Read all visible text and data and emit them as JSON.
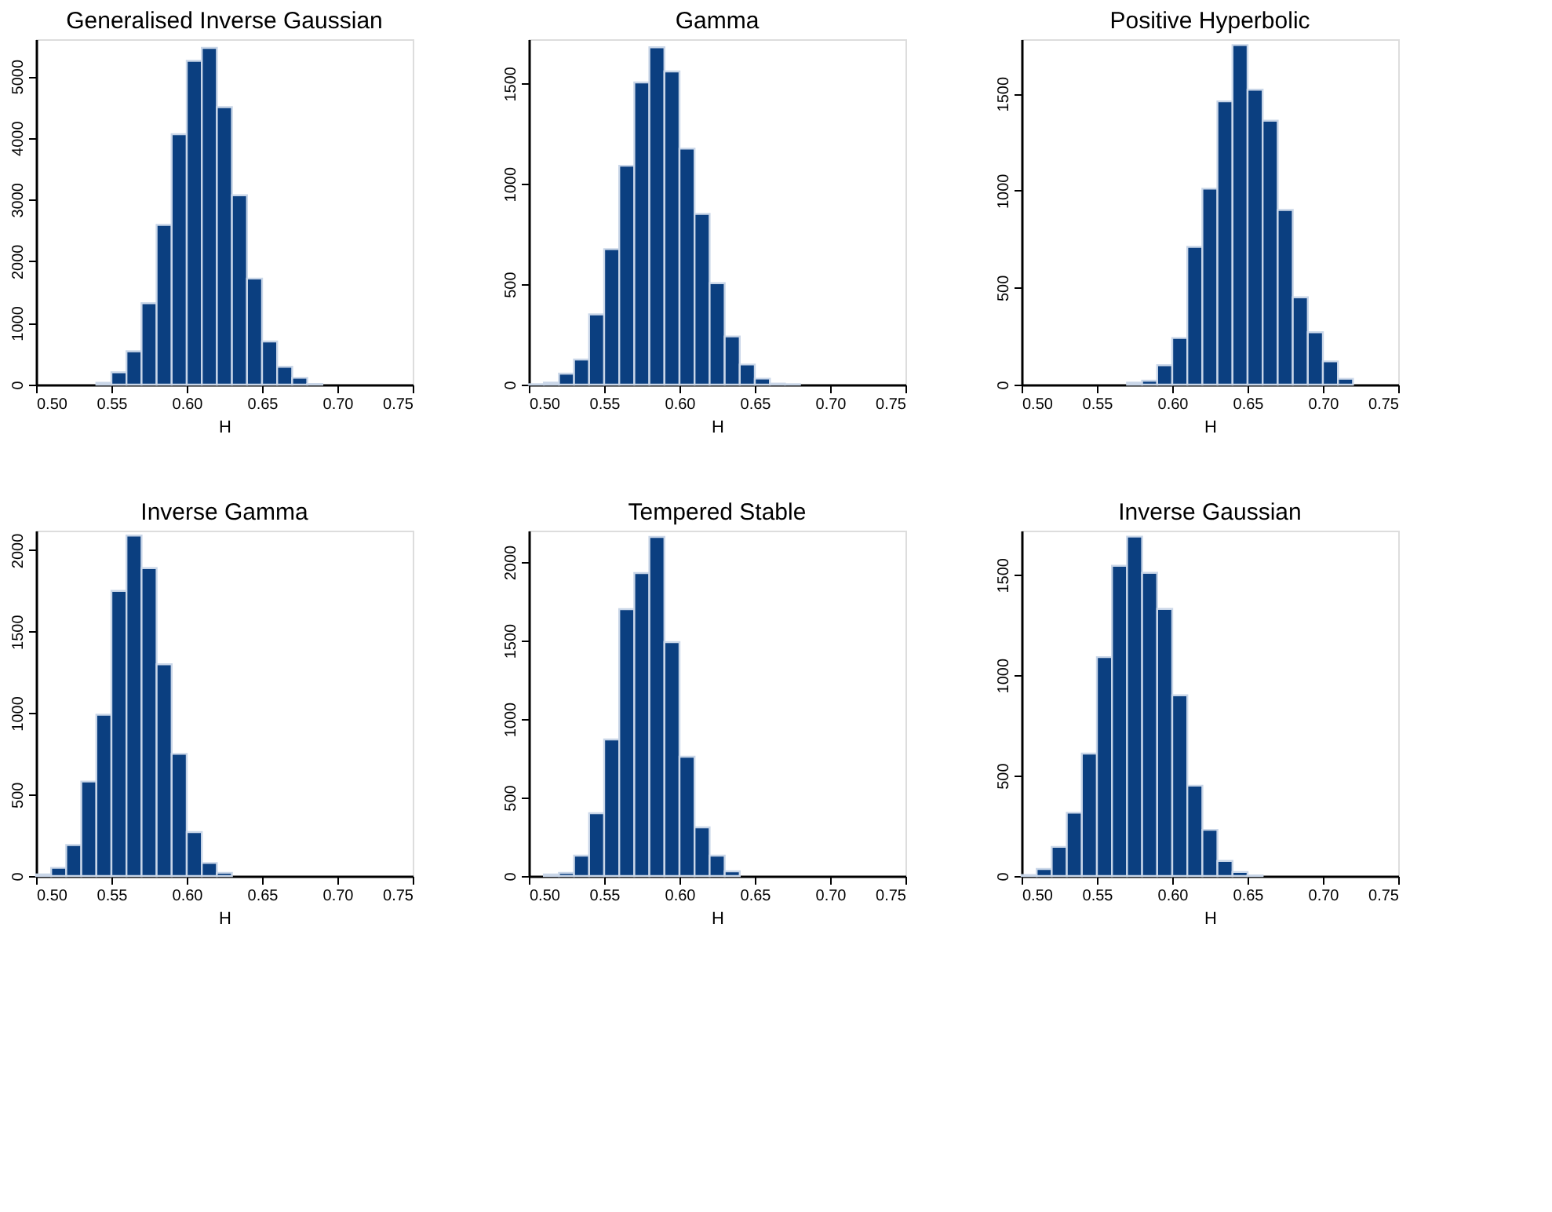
{
  "chart_data": [
    {
      "type": "histogram",
      "title": "Generalised Inverse Gaussian",
      "xlabel": "H",
      "color": "#0b3f80",
      "grid": false,
      "bins": [
        0.5,
        0.51,
        0.52,
        0.53,
        0.54,
        0.55,
        0.56,
        0.57,
        0.58,
        0.59,
        0.6,
        0.61,
        0.62,
        0.63,
        0.64,
        0.65,
        0.66,
        0.67,
        0.68,
        0.69,
        0.7,
        0.71,
        0.72,
        0.73,
        0.74,
        0.75
      ],
      "values": [
        0,
        0,
        0,
        0,
        30,
        200,
        540,
        1320,
        2590,
        4060,
        5250,
        5460,
        4500,
        3070,
        1720,
        700,
        290,
        110,
        10,
        0,
        0,
        0,
        0,
        0,
        0
      ],
      "xlim": [
        0.5,
        0.75
      ],
      "xticks": [
        {
          "value": 0.5,
          "label": "0.50"
        },
        {
          "value": 0.55,
          "label": "0.55"
        },
        {
          "value": 0.6,
          "label": "0.60"
        },
        {
          "value": 0.65,
          "label": "0.65"
        },
        {
          "value": 0.7,
          "label": "0.70"
        },
        {
          "value": 0.75,
          "label": "0.75"
        }
      ],
      "ylim": [
        0,
        5600
      ],
      "yticks": [
        0,
        1000,
        2000,
        3000,
        4000,
        5000
      ]
    },
    {
      "type": "histogram",
      "title": "Gamma",
      "xlabel": "H",
      "color": "#0b3f80",
      "grid": false,
      "bins": [
        0.5,
        0.51,
        0.52,
        0.53,
        0.54,
        0.55,
        0.56,
        0.57,
        0.58,
        0.59,
        0.6,
        0.61,
        0.62,
        0.63,
        0.64,
        0.65,
        0.66,
        0.67,
        0.68,
        0.69,
        0.7,
        0.71,
        0.72,
        0.73,
        0.74,
        0.75
      ],
      "values": [
        2,
        10,
        55,
        125,
        350,
        675,
        1090,
        1505,
        1680,
        1560,
        1175,
        850,
        505,
        240,
        100,
        30,
        5,
        2,
        0,
        0,
        0,
        0,
        0,
        0,
        0
      ],
      "xlim": [
        0.5,
        0.75
      ],
      "xticks": [
        {
          "value": 0.5,
          "label": "0.50"
        },
        {
          "value": 0.55,
          "label": "0.55"
        },
        {
          "value": 0.6,
          "label": "0.60"
        },
        {
          "value": 0.65,
          "label": "0.65"
        },
        {
          "value": 0.7,
          "label": "0.70"
        },
        {
          "value": 0.75,
          "label": "0.75"
        }
      ],
      "ylim": [
        0,
        1720
      ],
      "yticks": [
        0,
        500,
        1000,
        1500
      ]
    },
    {
      "type": "histogram",
      "title": "Positive Hyperbolic",
      "xlabel": "H",
      "color": "#0b3f80",
      "grid": false,
      "bins": [
        0.5,
        0.51,
        0.52,
        0.53,
        0.54,
        0.55,
        0.56,
        0.57,
        0.58,
        0.59,
        0.6,
        0.61,
        0.62,
        0.63,
        0.64,
        0.65,
        0.66,
        0.67,
        0.68,
        0.69,
        0.7,
        0.71,
        0.72,
        0.73,
        0.74,
        0.75
      ],
      "values": [
        0,
        0,
        0,
        0,
        0,
        0,
        0,
        10,
        20,
        100,
        240,
        710,
        1010,
        1460,
        1750,
        1520,
        1360,
        900,
        450,
        270,
        120,
        30,
        0,
        0,
        0
      ],
      "xlim": [
        0.5,
        0.75
      ],
      "xticks": [
        {
          "value": 0.5,
          "label": "0.50"
        },
        {
          "value": 0.55,
          "label": "0.55"
        },
        {
          "value": 0.6,
          "label": "0.60"
        },
        {
          "value": 0.65,
          "label": "0.65"
        },
        {
          "value": 0.7,
          "label": "0.70"
        },
        {
          "value": 0.75,
          "label": "0.75"
        }
      ],
      "ylim": [
        0,
        1780
      ],
      "yticks": [
        0,
        500,
        1000,
        1500
      ]
    },
    {
      "type": "histogram",
      "title": "Inverse Gamma",
      "xlabel": "H",
      "color": "#0b3f80",
      "grid": false,
      "bins": [
        0.5,
        0.51,
        0.52,
        0.53,
        0.54,
        0.55,
        0.56,
        0.57,
        0.58,
        0.59,
        0.6,
        0.61,
        0.62,
        0.63,
        0.64,
        0.65,
        0.66,
        0.67,
        0.68,
        0.69,
        0.7,
        0.71,
        0.72,
        0.73,
        0.74,
        0.75
      ],
      "values": [
        10,
        50,
        190,
        580,
        990,
        1750,
        2090,
        1890,
        1300,
        750,
        270,
        80,
        20,
        0,
        0,
        0,
        0,
        0,
        0,
        0,
        0,
        0,
        0,
        0,
        0
      ],
      "xlim": [
        0.5,
        0.75
      ],
      "xticks": [
        {
          "value": 0.5,
          "label": "0.50"
        },
        {
          "value": 0.55,
          "label": "0.55"
        },
        {
          "value": 0.6,
          "label": "0.60"
        },
        {
          "value": 0.65,
          "label": "0.65"
        },
        {
          "value": 0.7,
          "label": "0.70"
        },
        {
          "value": 0.75,
          "label": "0.75"
        }
      ],
      "ylim": [
        0,
        2120
      ],
      "yticks": [
        0,
        500,
        1000,
        1500,
        2000
      ]
    },
    {
      "type": "histogram",
      "title": "Tempered Stable",
      "xlabel": "H",
      "color": "#0b3f80",
      "grid": false,
      "bins": [
        0.5,
        0.51,
        0.52,
        0.53,
        0.54,
        0.55,
        0.56,
        0.57,
        0.58,
        0.59,
        0.6,
        0.61,
        0.62,
        0.63,
        0.64,
        0.65,
        0.66,
        0.67,
        0.68,
        0.69,
        0.7,
        0.71,
        0.72,
        0.73,
        0.74,
        0.75
      ],
      "values": [
        0,
        10,
        20,
        130,
        400,
        870,
        1700,
        1930,
        2160,
        1490,
        760,
        310,
        130,
        30,
        0,
        0,
        0,
        0,
        0,
        0,
        0,
        0,
        0,
        0,
        0
      ],
      "xlim": [
        0.5,
        0.75
      ],
      "xticks": [
        {
          "value": 0.5,
          "label": "0.50"
        },
        {
          "value": 0.55,
          "label": "0.55"
        },
        {
          "value": 0.6,
          "label": "0.60"
        },
        {
          "value": 0.65,
          "label": "0.65"
        },
        {
          "value": 0.7,
          "label": "0.70"
        },
        {
          "value": 0.75,
          "label": "0.75"
        }
      ],
      "ylim": [
        0,
        2200
      ],
      "yticks": [
        0,
        500,
        1000,
        1500,
        2000
      ]
    },
    {
      "type": "histogram",
      "title": "Inverse Gaussian",
      "xlabel": "H",
      "color": "#0b3f80",
      "grid": false,
      "bins": [
        0.5,
        0.51,
        0.52,
        0.53,
        0.54,
        0.55,
        0.56,
        0.57,
        0.58,
        0.59,
        0.6,
        0.61,
        0.62,
        0.63,
        0.64,
        0.65,
        0.66,
        0.67,
        0.68,
        0.69,
        0.7,
        0.71,
        0.72,
        0.73,
        0.74,
        0.75
      ],
      "values": [
        5,
        35,
        145,
        315,
        610,
        1090,
        1545,
        1690,
        1510,
        1330,
        900,
        450,
        230,
        75,
        20,
        3,
        0,
        0,
        0,
        0,
        0,
        0,
        0,
        0,
        0
      ],
      "xlim": [
        0.5,
        0.75
      ],
      "xticks": [
        {
          "value": 0.5,
          "label": "0.50"
        },
        {
          "value": 0.55,
          "label": "0.55"
        },
        {
          "value": 0.6,
          "label": "0.60"
        },
        {
          "value": 0.65,
          "label": "0.65"
        },
        {
          "value": 0.7,
          "label": "0.70"
        },
        {
          "value": 0.75,
          "label": "0.75"
        }
      ],
      "ylim": [
        0,
        1720
      ],
      "yticks": [
        0,
        500,
        1000,
        1500
      ]
    }
  ]
}
